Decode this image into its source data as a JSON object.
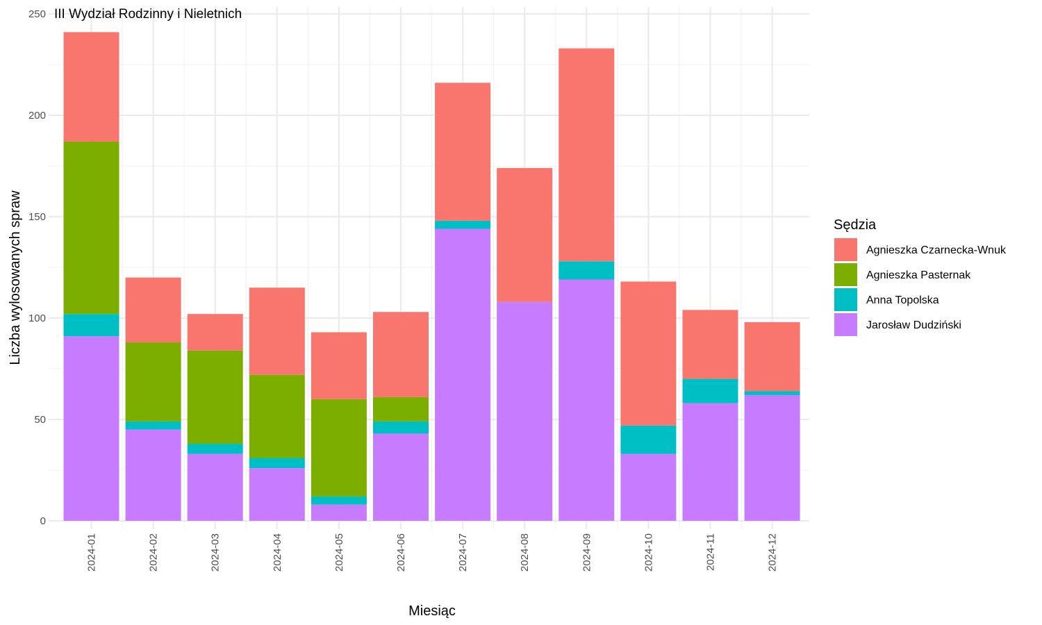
{
  "chart_data": {
    "type": "bar",
    "stacked": true,
    "title": "III Wydział Rodzinny i Nieletnich",
    "xlabel": "Miesiąc",
    "ylabel": "Liczba wylosowanych spraw",
    "ylim": [
      0,
      250
    ],
    "yticks": [
      0,
      50,
      100,
      150,
      200,
      250
    ],
    "grid": true,
    "legend_position": "right",
    "legend_title": "Sędzia",
    "categories": [
      "2024-01",
      "2024-02",
      "2024-03",
      "2024-04",
      "2024-05",
      "2024-06",
      "2024-07",
      "2024-08",
      "2024-09",
      "2024-10",
      "2024-11",
      "2024-12"
    ],
    "series": [
      {
        "name": "Jarosław Dudziński",
        "color": "#C77CFF",
        "values": [
          91,
          45,
          33,
          26,
          8,
          43,
          144,
          108,
          119,
          33,
          58,
          62
        ]
      },
      {
        "name": "Anna Topolska",
        "color": "#00BFC4",
        "values": [
          11,
          4,
          5,
          5,
          4,
          6,
          4,
          0,
          9,
          14,
          12,
          2
        ]
      },
      {
        "name": "Agnieszka Pasternak",
        "color": "#7CAE00",
        "values": [
          85,
          39,
          46,
          41,
          48,
          12,
          0,
          0,
          0,
          0,
          0,
          0
        ]
      },
      {
        "name": "Agnieszka Czarnecka-Wnuk",
        "color": "#F8766D",
        "values": [
          54,
          32,
          18,
          43,
          33,
          42,
          68,
          66,
          105,
          71,
          34,
          34
        ]
      }
    ],
    "legend_order": [
      "Agnieszka Czarnecka-Wnuk",
      "Agnieszka Pasternak",
      "Anna Topolska",
      "Jarosław Dudziński"
    ]
  }
}
